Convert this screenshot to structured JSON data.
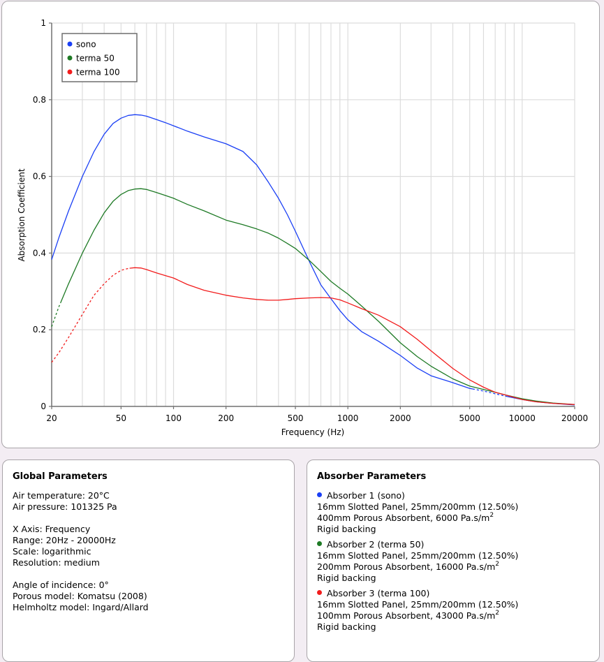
{
  "chart_data": {
    "type": "line",
    "xlabel": "Frequency (Hz)",
    "ylabel": "Absorption Coefficient",
    "xscale": "log",
    "xlim": [
      20,
      20000
    ],
    "ylim": [
      0,
      1
    ],
    "grid": true,
    "legend_position": "top-left",
    "x_tick_labels": [
      "20",
      "50",
      "100",
      "200",
      "500",
      "1000",
      "2000",
      "5000",
      "10000",
      "20000"
    ],
    "x_ticks": [
      20,
      50,
      100,
      200,
      500,
      1000,
      2000,
      5000,
      10000,
      20000
    ],
    "x_minor_grid": [
      30,
      40,
      60,
      70,
      80,
      90,
      300,
      400,
      600,
      700,
      800,
      900,
      3000,
      4000,
      6000,
      7000,
      8000,
      9000
    ],
    "y_ticks": [
      0,
      0.2,
      0.4,
      0.6,
      0.8,
      1
    ],
    "y_tick_labels": [
      "0",
      "0.2",
      "0.4",
      "0.6",
      "0.8",
      "1"
    ],
    "series": [
      {
        "name": "sono",
        "color": "#1a3ff5",
        "x": [
          20,
          22,
          25,
          30,
          35,
          40,
          45,
          50,
          55,
          60,
          65,
          70,
          80,
          90,
          100,
          120,
          150,
          200,
          250,
          300,
          350,
          400,
          450,
          500,
          600,
          700,
          800,
          900,
          1000,
          1200,
          1500,
          2000,
          2500,
          3000,
          4000,
          5000,
          6000,
          7000,
          8000,
          10000,
          12000,
          15000,
          20000
        ],
        "y": [
          0.383,
          0.44,
          0.51,
          0.6,
          0.665,
          0.71,
          0.738,
          0.752,
          0.759,
          0.761,
          0.76,
          0.757,
          0.748,
          0.74,
          0.732,
          0.718,
          0.703,
          0.685,
          0.665,
          0.63,
          0.585,
          0.543,
          0.5,
          0.457,
          0.379,
          0.317,
          0.281,
          0.25,
          0.226,
          0.195,
          0.17,
          0.133,
          0.1,
          0.08,
          0.062,
          0.047,
          0.04,
          0.033,
          0.027,
          0.018,
          0.012,
          0.008,
          0.004
        ],
        "dashed_ranges": [
          [
            5200,
            8000
          ]
        ]
      },
      {
        "name": "terma 50",
        "color": "#1e7a25",
        "x": [
          20,
          22,
          25,
          30,
          35,
          40,
          45,
          50,
          55,
          60,
          65,
          70,
          80,
          90,
          100,
          120,
          150,
          200,
          250,
          300,
          350,
          400,
          450,
          500,
          600,
          700,
          800,
          900,
          1000,
          1200,
          1500,
          2000,
          2500,
          3000,
          4000,
          5000,
          6000,
          7000,
          8000,
          10000,
          12000,
          15000,
          20000
        ],
        "y": [
          0.208,
          0.26,
          0.32,
          0.4,
          0.46,
          0.505,
          0.535,
          0.553,
          0.563,
          0.567,
          0.568,
          0.566,
          0.558,
          0.55,
          0.543,
          0.527,
          0.51,
          0.486,
          0.474,
          0.463,
          0.452,
          0.439,
          0.425,
          0.412,
          0.381,
          0.352,
          0.326,
          0.308,
          0.293,
          0.262,
          0.222,
          0.166,
          0.13,
          0.105,
          0.072,
          0.053,
          0.044,
          0.037,
          0.03,
          0.02,
          0.014,
          0.009,
          0.005
        ],
        "dashed_ranges": [
          [
            20,
            22.5
          ]
        ]
      },
      {
        "name": "terma 100",
        "color": "#f21c1c",
        "x": [
          20,
          22,
          25,
          30,
          35,
          40,
          45,
          50,
          55,
          60,
          65,
          70,
          80,
          90,
          100,
          120,
          150,
          200,
          250,
          300,
          350,
          400,
          450,
          500,
          600,
          700,
          800,
          900,
          1000,
          1200,
          1500,
          2000,
          2500,
          3000,
          4000,
          5000,
          6000,
          7000,
          8000,
          10000,
          12000,
          15000,
          20000
        ],
        "y": [
          0.115,
          0.14,
          0.18,
          0.24,
          0.29,
          0.32,
          0.342,
          0.355,
          0.36,
          0.362,
          0.361,
          0.357,
          0.348,
          0.341,
          0.335,
          0.318,
          0.303,
          0.29,
          0.283,
          0.279,
          0.277,
          0.277,
          0.279,
          0.281,
          0.283,
          0.284,
          0.283,
          0.278,
          0.27,
          0.255,
          0.238,
          0.208,
          0.175,
          0.145,
          0.099,
          0.069,
          0.05,
          0.037,
          0.03,
          0.018,
          0.012,
          0.008,
          0.005
        ],
        "dashed_ranges": [
          [
            20,
            56
          ]
        ]
      }
    ]
  },
  "global_parameters": {
    "title": "Global Parameters",
    "air_temperature": "Air temperature: 20°C",
    "air_pressure": "Air pressure: 101325 Pa",
    "x_axis": "X Axis: Frequency",
    "range": "Range: 20Hz - 20000Hz",
    "scale": "Scale: logarithmic",
    "resolution": "Resolution: medium",
    "angle": "Angle of incidence: 0°",
    "porous_model": "Porous model: Komatsu (2008)",
    "helmholtz_model": "Helmholtz model: Ingard/Allard"
  },
  "absorber_parameters": {
    "title": "Absorber Parameters",
    "absorbers": [
      {
        "name": "Absorber 1 (sono)",
        "color": "#1a3ff5",
        "panel": "16mm Slotted Panel, 25mm/200mm (12.50%)",
        "porous": "400mm Porous Absorbent, 6000 Pa.s/m",
        "unit_exp": "2",
        "backing": "Rigid backing"
      },
      {
        "name": "Absorber 2 (terma 50)",
        "color": "#1e7a25",
        "panel": "16mm Slotted Panel, 25mm/200mm (12.50%)",
        "porous": "200mm Porous Absorbent, 16000 Pa.s/m",
        "unit_exp": "2",
        "backing": "Rigid backing"
      },
      {
        "name": "Absorber 3 (terma 100)",
        "color": "#f21c1c",
        "panel": "16mm Slotted Panel, 25mm/200mm (12.50%)",
        "porous": "100mm Porous Absorbent, 43000 Pa.s/m",
        "unit_exp": "2",
        "backing": "Rigid backing"
      }
    ]
  }
}
